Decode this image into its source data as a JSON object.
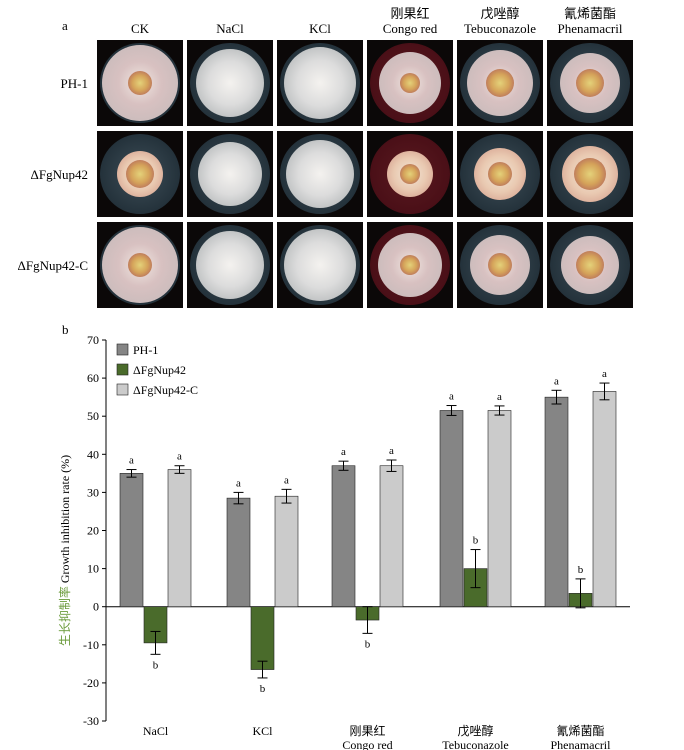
{
  "panel_a": {
    "label": "a",
    "columns": [
      {
        "line1": "",
        "line2": "CK"
      },
      {
        "line1": "",
        "line2": "NaCl"
      },
      {
        "line1": "",
        "line2": "KCl"
      },
      {
        "line1": "刚果红",
        "line2": "Congo red"
      },
      {
        "line1": "戊唑醇",
        "line2": "Tebuconazole"
      },
      {
        "line1": "氰烯菌酯",
        "line2": "Phenamacril"
      }
    ],
    "rows": [
      "PH-1",
      "ΔFgNup42",
      "ΔFgNup42-C"
    ],
    "colors": {
      "plate_bg": "#0b0808",
      "dish_blue": "#2b3a44",
      "dish_red": "#4a0f17",
      "mycelium": "#e8e4df",
      "pigment_center": "#d9b86a"
    }
  },
  "chart_data": {
    "type": "bar",
    "panel_label": "b",
    "categories": [
      {
        "line1": "NaCl",
        "line2": ""
      },
      {
        "line1": "KCl",
        "line2": ""
      },
      {
        "line1": "刚果红",
        "line2": "Congo red"
      },
      {
        "line1": "戊唑醇",
        "line2": "Tebuconazole"
      },
      {
        "line1": "氰烯菌酯",
        "line2": "Phenamacril"
      }
    ],
    "series": [
      {
        "name": "PH-1",
        "color": "#858585",
        "values": [
          35,
          28.5,
          37,
          51.5,
          55
        ],
        "errors": [
          1.0,
          1.5,
          1.2,
          1.3,
          1.8
        ],
        "sig": [
          "a",
          "a",
          "a",
          "a",
          "a"
        ]
      },
      {
        "name": "ΔFgNup42",
        "color": "#4a6b2b",
        "values": [
          -9.5,
          -16.5,
          -3.5,
          10,
          3.5
        ],
        "errors": [
          3.0,
          2.2,
          3.5,
          5.0,
          3.8
        ],
        "sig": [
          "b",
          "b",
          "b",
          "b",
          "b"
        ]
      },
      {
        "name": "ΔFgNup42-C",
        "color": "#cbcbcb",
        "values": [
          36,
          29,
          37,
          51.5,
          56.5
        ],
        "errors": [
          1.0,
          1.8,
          1.5,
          1.2,
          2.2
        ],
        "sig": [
          "a",
          "a",
          "a",
          "a",
          "a"
        ]
      }
    ],
    "ylabel_cn": "生长抑制率",
    "ylabel_en": "Growth inhibition rate (%)",
    "ylim": [
      -30,
      70
    ],
    "yticks": [
      -30,
      -20,
      -10,
      0,
      10,
      20,
      30,
      40,
      50,
      60,
      70
    ],
    "legend_position": "top-left",
    "grid": false
  }
}
